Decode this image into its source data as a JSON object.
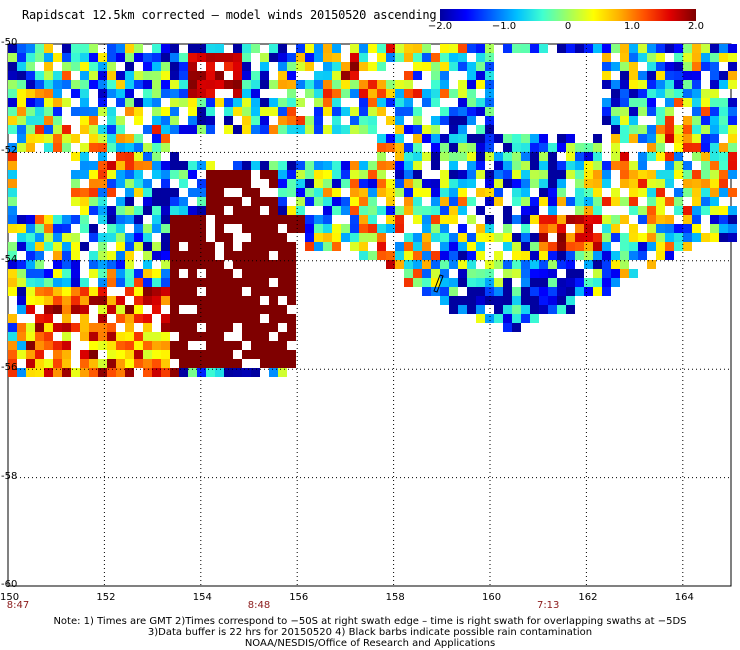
{
  "title": "Rapidscat 12.5km corrected – model winds 20150520 ascending",
  "colorbar": {
    "colors": [
      "#0000a0",
      "#0000ff",
      "#0060ff",
      "#00c0ff",
      "#40ffd0",
      "#a0ff60",
      "#ffff00",
      "#ffb000",
      "#ff5000",
      "#e00000",
      "#7f0000"
    ],
    "ticks": [
      {
        "label": "−2.0",
        "value": -2.0
      },
      {
        "label": "−1.0",
        "value": -1.0
      },
      {
        "label": "0",
        "value": 0
      },
      {
        "label": "1.0",
        "value": 1.0
      },
      {
        "label": "2.0",
        "value": 2.0
      }
    ],
    "range": [
      -2.0,
      2.0
    ]
  },
  "axes": {
    "lat_labels": [
      "-50",
      "-52",
      "-54",
      "-56",
      "-58",
      "-60"
    ],
    "lat_values": [
      -50,
      -52,
      -54,
      -56,
      -58,
      -60
    ],
    "lon_labels": [
      "150",
      "152",
      "154",
      "156",
      "158",
      "160",
      "162",
      "164"
    ],
    "lon_values": [
      150,
      152,
      154,
      156,
      158,
      160,
      162,
      164
    ],
    "lat_range": [
      -60,
      -50
    ],
    "lon_range": [
      150,
      165
    ]
  },
  "swath_times": [
    {
      "label": "8:47",
      "lon": 150
    },
    {
      "label": "8:48",
      "lon": 155
    },
    {
      "label": "7:13",
      "lon": 161
    }
  ],
  "notes": [
    "Note: 1) Times are GMT 2)Times correspond to −50S at right swath edge – time is right swath for overlapping swaths at −5DS",
    "3)Data buffer is 22 hrs for 20150520 4) Black barbs indicate possible rain contamination",
    "NOAA/NESDIS/Office of Research and Applications"
  ]
}
